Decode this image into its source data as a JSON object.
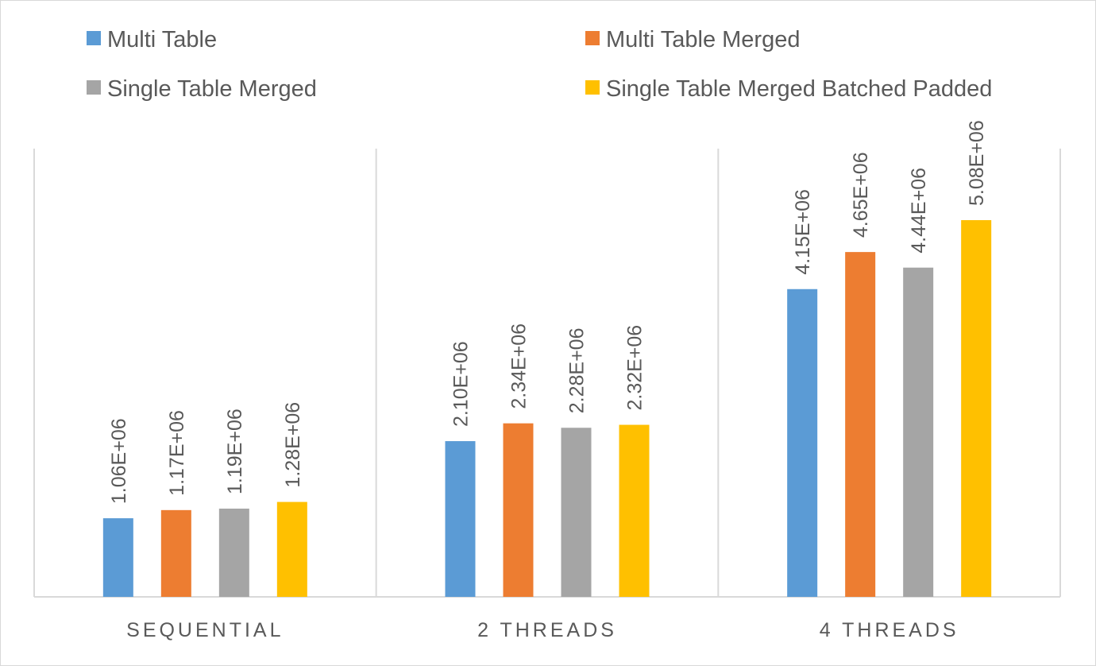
{
  "chart_data": {
    "type": "bar",
    "title": "",
    "xlabel": "",
    "ylabel": "",
    "categories": [
      "SEQUENTIAL",
      "2 THREADS",
      "4 THREADS"
    ],
    "series": [
      {
        "name": "Multi Table",
        "color": "#5b9bd5",
        "values": [
          1060000,
          2100000,
          4150000
        ],
        "labels": [
          "1.06E+06",
          "2.10E+06",
          "4.15E+06"
        ]
      },
      {
        "name": "Multi Table Merged",
        "color": "#ed7d31",
        "values": [
          1170000,
          2340000,
          4650000
        ],
        "labels": [
          "1.17E+06",
          "2.34E+06",
          "4.65E+06"
        ]
      },
      {
        "name": "Single Table Merged",
        "color": "#a5a5a5",
        "values": [
          1190000,
          2280000,
          4440000
        ],
        "labels": [
          "1.19E+06",
          "2.28E+06",
          "4.44E+06"
        ]
      },
      {
        "name": "Single Table Merged Batched Padded",
        "color": "#ffc000",
        "values": [
          1280000,
          2320000,
          5080000
        ],
        "labels": [
          "1.28E+06",
          "2.32E+06",
          "5.08E+06"
        ]
      }
    ],
    "ylim": [
      0,
      6000000
    ],
    "grid": false,
    "legend_position": "top"
  }
}
